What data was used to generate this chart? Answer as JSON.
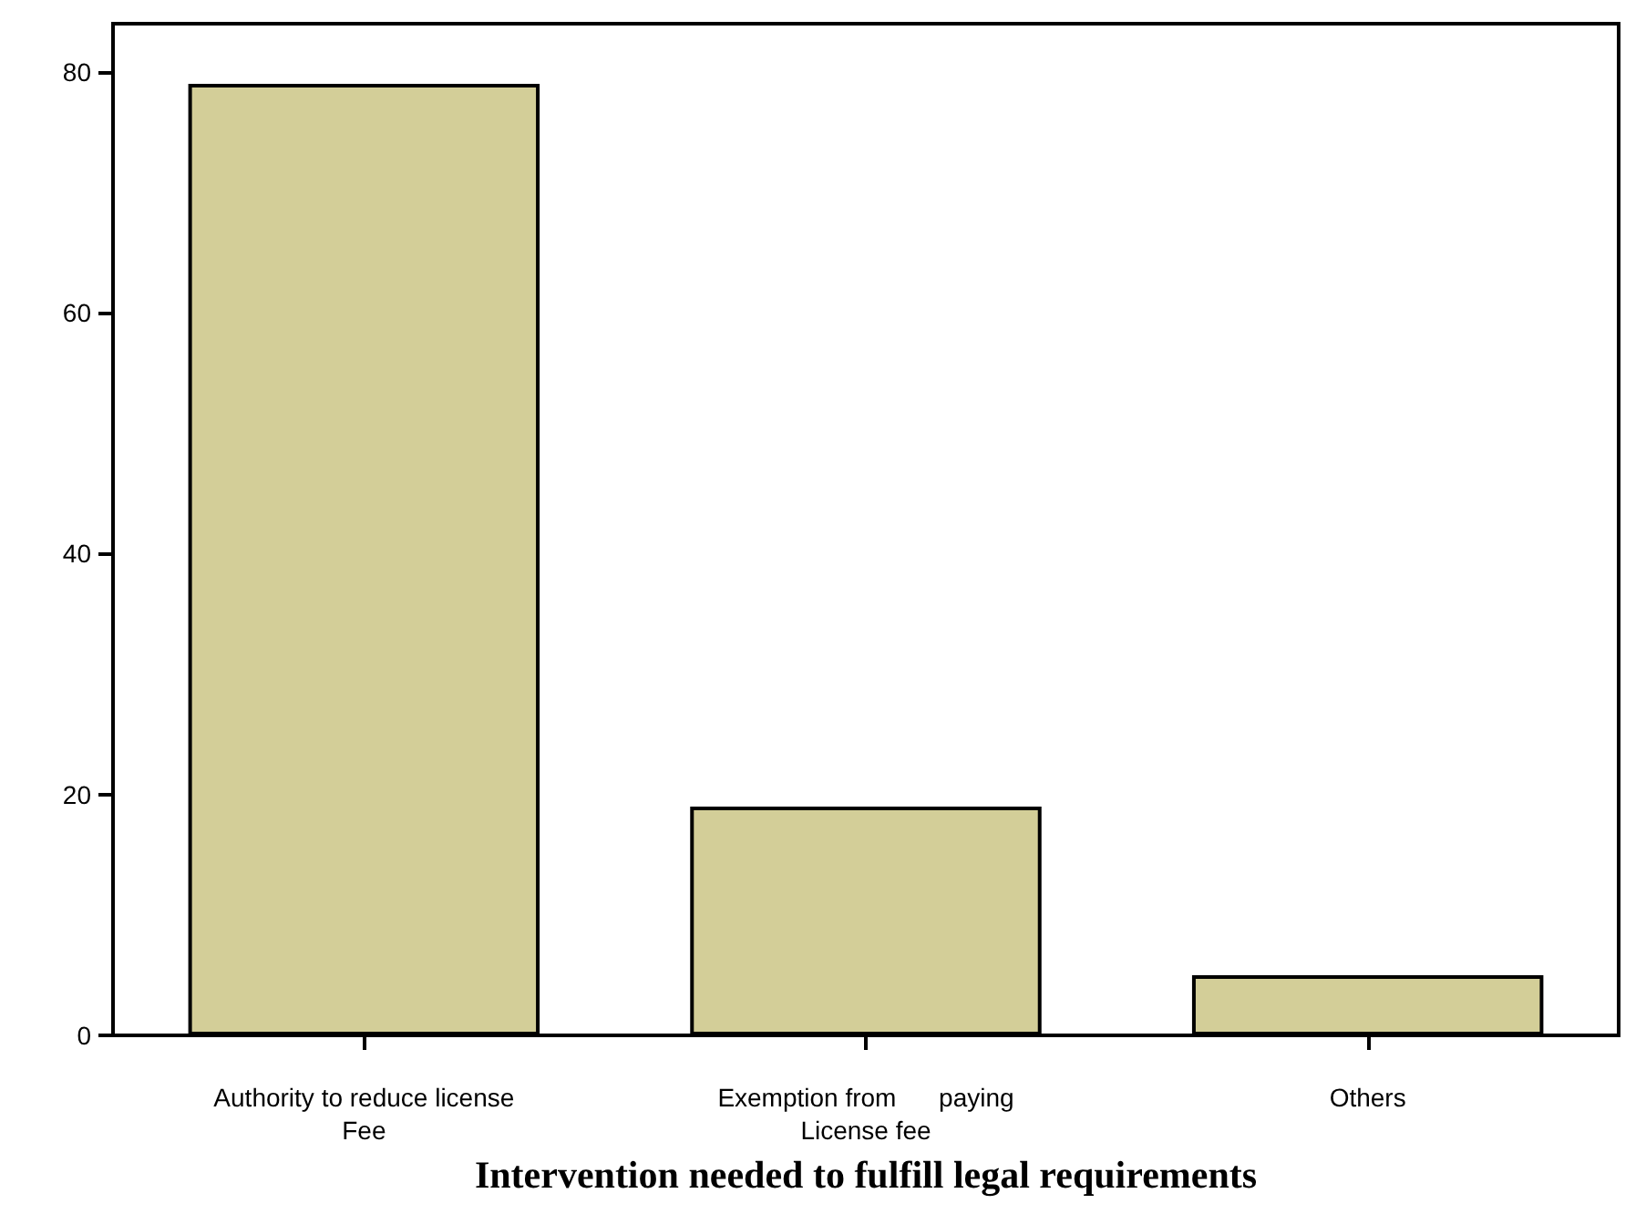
{
  "chart_data": {
    "type": "bar",
    "xlabel": "Intervention needed to fulfill legal requirements",
    "categories": [
      "Authority to reduce license\nFee",
      "Exemption from      paying\nLicense fee",
      "Others"
    ],
    "values": [
      79,
      19,
      5
    ],
    "color": "#d3ce98",
    "ylim": [
      0,
      84
    ],
    "yticks": [
      0,
      20,
      40,
      60,
      80
    ],
    "grid": false
  }
}
